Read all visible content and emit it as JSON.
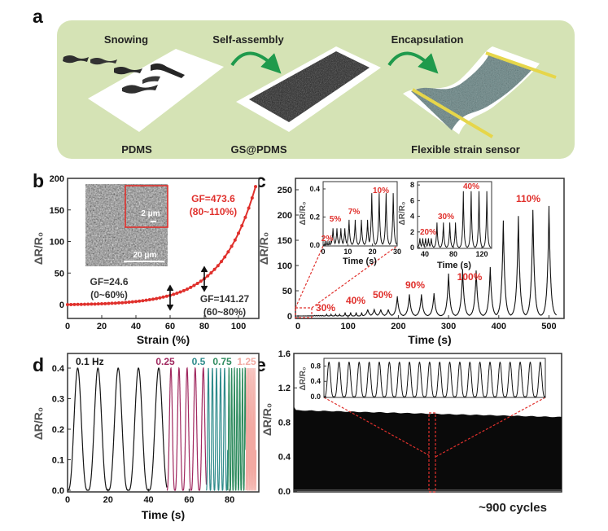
{
  "panel_labels": [
    "a",
    "b",
    "c",
    "d",
    "e"
  ],
  "schematic": {
    "steps": [
      "Snowing",
      "Self-assembly",
      "Encapsulation"
    ],
    "stages": [
      "PDMS",
      "GS@PDMS",
      "Flexible strain sensor"
    ],
    "background_color": "#d5e3b5",
    "arrow_color": "#1f9a4c",
    "electrode_color": "#e6d64a"
  },
  "chart_data": [
    {
      "panel": "b",
      "type": "line",
      "xlabel": "Strain (%)",
      "ylabel": "ΔR/R₀",
      "xlim": [
        0,
        111.9
      ],
      "ylim": [
        -21.9,
        200
      ],
      "xticks": [
        "0",
        "20",
        "40",
        "60",
        "80",
        "100"
      ],
      "yticks": [
        "0",
        "50",
        "100",
        "150",
        "200"
      ],
      "color": "#e0302c",
      "x": [
        0,
        2,
        4,
        6,
        8,
        10,
        12,
        14,
        16,
        18,
        20,
        22,
        24,
        26,
        28,
        30,
        32,
        34,
        36,
        38,
        40,
        42,
        44,
        46,
        48,
        50,
        52,
        54,
        56,
        58,
        60,
        62,
        64,
        66,
        68,
        70,
        72,
        74,
        76,
        78,
        80,
        82,
        84,
        86,
        88,
        90,
        92,
        94,
        96,
        98,
        100,
        102,
        104,
        106,
        108,
        110
      ],
      "y": [
        0,
        0.1,
        0.2,
        0.3,
        0.4,
        0.5,
        0.6,
        0.8,
        0.9,
        1.1,
        1.3,
        1.5,
        1.8,
        2.1,
        2.3,
        2.7,
        3.0,
        3.4,
        3.9,
        4.4,
        4.9,
        5.5,
        6.2,
        6.9,
        7.7,
        8.6,
        9.6,
        10.7,
        11.9,
        13.2,
        14.6,
        16.3,
        18.1,
        20.0,
        22.2,
        24.6,
        27.3,
        30.3,
        33.5,
        37.1,
        41.1,
        45.5,
        50.4,
        55.8,
        61.7,
        68.3,
        75.5,
        83.6,
        92.4,
        102.2,
        113.1,
        125.0,
        138.3,
        152.9,
        169.0,
        186.9
      ],
      "region_markers": [
        60,
        80
      ],
      "annotations": {
        "gf1": "GF=24.6",
        "gf1_range": "(0~60%)",
        "gf2": "GF=141.27",
        "gf2_range": "(60~80%)",
        "gf3": "GF=473.6",
        "gf3_range": "(80~110%)"
      },
      "inset_image": {
        "scale_bar_small": "2 μm",
        "scale_bar_large": "20 μm"
      }
    },
    {
      "panel": "c",
      "type": "line",
      "xlabel": "Time (s)",
      "ylabel": "ΔR/R₀",
      "xlim": [
        -4.9,
        530
      ],
      "ylim": [
        -4.8,
        272.6
      ],
      "xticks": [
        "0",
        "100",
        "200",
        "300",
        "400",
        "500"
      ],
      "yticks": [
        "0",
        "50",
        "100",
        "150",
        "200",
        "250"
      ],
      "strain_labels": [
        "30%",
        "40%",
        "50%",
        "90%",
        "100%",
        "110%"
      ],
      "peaks": [
        [
          0.8,
          0.03
        ],
        [
          1.6,
          0.03
        ],
        [
          2.4,
          0.03
        ],
        [
          3.2,
          0.03
        ],
        [
          4,
          0.12
        ],
        [
          5.6,
          0.12
        ],
        [
          7.2,
          0.12
        ],
        [
          8.8,
          0.12
        ],
        [
          10.5,
          0.18
        ],
        [
          13,
          0.18
        ],
        [
          15.5,
          0.18
        ],
        [
          18,
          0.18
        ],
        [
          19.7,
          0.37
        ],
        [
          22.7,
          0.37
        ],
        [
          25.5,
          0.37
        ],
        [
          28.4,
          0.37
        ],
        [
          33,
          1.2
        ],
        [
          37,
          1.2
        ],
        [
          41,
          1.2
        ],
        [
          45,
          1.2
        ],
        [
          49,
          1.2
        ],
        [
          57,
          3.2
        ],
        [
          66,
          3.2
        ],
        [
          75,
          3.2
        ],
        [
          83,
          3.2
        ],
        [
          94,
          7.2
        ],
        [
          105,
          7.2
        ],
        [
          116,
          7.2
        ],
        [
          127,
          7.2
        ],
        [
          139,
          13
        ],
        [
          152,
          13
        ],
        [
          165,
          13
        ],
        [
          180,
          13
        ],
        [
          198,
          39
        ],
        [
          222,
          43
        ],
        [
          246,
          43
        ],
        [
          271,
          45
        ],
        [
          300,
          84
        ],
        [
          328,
          92
        ],
        [
          355,
          90
        ],
        [
          383,
          97
        ],
        [
          409,
          189
        ],
        [
          439,
          198
        ],
        [
          468,
          210
        ],
        [
          500,
          218
        ]
      ],
      "insets": [
        {
          "xlabel": "Time (s)",
          "ylabel": "ΔR/R₀",
          "xlim": [
            0,
            30
          ],
          "ylim": [
            -0.006,
            0.452
          ],
          "xticks": [
            "0",
            "10",
            "20",
            "30"
          ],
          "yticks": [
            "0.0",
            "0.2",
            "0.4"
          ],
          "strain_labels": [
            "2%",
            "5%",
            "7%",
            "10%"
          ]
        },
        {
          "xlabel": "Time (s)",
          "ylabel": "ΔR/R₀",
          "xlim": [
            29.7,
            133.7
          ],
          "ylim": [
            -0.1,
            8.43
          ],
          "xticks": [
            "40",
            "80",
            "120"
          ],
          "yticks": [
            "0",
            "2",
            "4",
            "6",
            "8"
          ],
          "strain_labels": [
            "20%",
            "30%",
            "40%"
          ]
        }
      ]
    },
    {
      "panel": "d",
      "type": "line",
      "xlabel": "Time (s)",
      "ylabel": "ΔR/R₀",
      "xlim": [
        0,
        94.4
      ],
      "ylim": [
        -0.0053,
        0.448
      ],
      "xticks": [
        "0",
        "20",
        "40",
        "60",
        "80"
      ],
      "yticks": [
        "0.0",
        "0.1",
        "0.2",
        "0.3",
        "0.4"
      ],
      "amplitude": 0.4,
      "series": [
        {
          "name": "0.1 Hz",
          "frequency": 0.1,
          "t_start": 0,
          "t_end": 49,
          "color": "#151515"
        },
        {
          "name": "0.25",
          "frequency": 0.25,
          "t_start": 49,
          "t_end": 68.5,
          "color": "#a0285f"
        },
        {
          "name": "0.5",
          "frequency": 0.5,
          "t_start": 68.5,
          "t_end": 79,
          "color": "#2e8b8b"
        },
        {
          "name": "0.75",
          "frequency": 0.75,
          "t_start": 79,
          "t_end": 88,
          "color": "#2e8b5e"
        },
        {
          "name": "1.25",
          "frequency": 1.25,
          "t_start": 88,
          "t_end": 93,
          "color": "#f2a9a2"
        }
      ]
    },
    {
      "panel": "e",
      "type": "area",
      "ylabel": "ΔR/R₀",
      "ylim": [
        -0.01,
        1.6
      ],
      "yticks": [
        "0.0",
        "0.4",
        "0.8",
        "1.2",
        "1.6"
      ],
      "envelope_start": 0.94,
      "envelope_end": 0.86,
      "cycles_label": "~900 cycles",
      "inset": {
        "ylabel": "ΔR/R₀",
        "ylim": [
          -0.02,
          1.0
        ],
        "yticks": [
          "0.0",
          "0.4",
          "0.8"
        ],
        "cycles": 22,
        "amplitude": 0.9
      }
    }
  ]
}
